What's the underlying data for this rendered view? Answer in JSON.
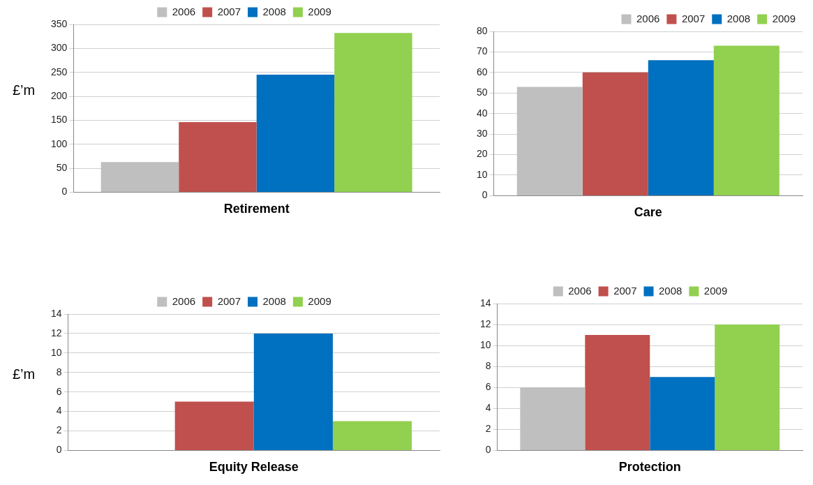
{
  "chart_data": [
    {
      "type": "bar",
      "categories": [
        "Retirement"
      ],
      "ylabel": "£’m",
      "ylim": [
        0,
        350
      ],
      "yticks": [
        0,
        50,
        100,
        150,
        200,
        250,
        300,
        350
      ],
      "grid": "y",
      "legend": "top",
      "series": [
        {
          "name": "2006",
          "color": "#bfbfbf",
          "values": [
            63
          ]
        },
        {
          "name": "2007",
          "color": "#c0504d",
          "values": [
            146
          ]
        },
        {
          "name": "2008",
          "color": "#0070c0",
          "values": [
            245
          ]
        },
        {
          "name": "2009",
          "color": "#92d050",
          "values": [
            332
          ]
        }
      ]
    },
    {
      "type": "bar",
      "categories": [
        "Care"
      ],
      "ylim": [
        0,
        80
      ],
      "yticks": [
        0,
        10,
        20,
        30,
        40,
        50,
        60,
        70,
        80
      ],
      "grid": "y",
      "legend": "top right",
      "series": [
        {
          "name": "2006",
          "color": "#bfbfbf",
          "values": [
            53
          ]
        },
        {
          "name": "2007",
          "color": "#c0504d",
          "values": [
            60
          ]
        },
        {
          "name": "2008",
          "color": "#0070c0",
          "values": [
            66
          ]
        },
        {
          "name": "2009",
          "color": "#92d050",
          "values": [
            73
          ]
        }
      ]
    },
    {
      "type": "bar",
      "categories": [
        "Equity Release"
      ],
      "ylabel": "£’m",
      "ylim": [
        0,
        14
      ],
      "yticks": [
        0,
        2,
        4,
        6,
        8,
        10,
        12,
        14
      ],
      "grid": "y",
      "legend": "top",
      "series": [
        {
          "name": "2006",
          "color": "#bfbfbf",
          "values": [
            0
          ]
        },
        {
          "name": "2007",
          "color": "#c0504d",
          "values": [
            5
          ]
        },
        {
          "name": "2008",
          "color": "#0070c0",
          "values": [
            12
          ]
        },
        {
          "name": "2009",
          "color": "#92d050",
          "values": [
            3
          ]
        }
      ]
    },
    {
      "type": "bar",
      "categories": [
        "Protection"
      ],
      "ylim": [
        0,
        14
      ],
      "yticks": [
        0,
        2,
        4,
        6,
        8,
        10,
        12,
        14
      ],
      "grid": "y",
      "legend": "top",
      "series": [
        {
          "name": "2006",
          "color": "#bfbfbf",
          "values": [
            6
          ]
        },
        {
          "name": "2007",
          "color": "#c0504d",
          "values": [
            11
          ]
        },
        {
          "name": "2008",
          "color": "#0070c0",
          "values": [
            7
          ]
        },
        {
          "name": "2009",
          "color": "#92d050",
          "values": [
            12
          ]
        }
      ]
    }
  ]
}
